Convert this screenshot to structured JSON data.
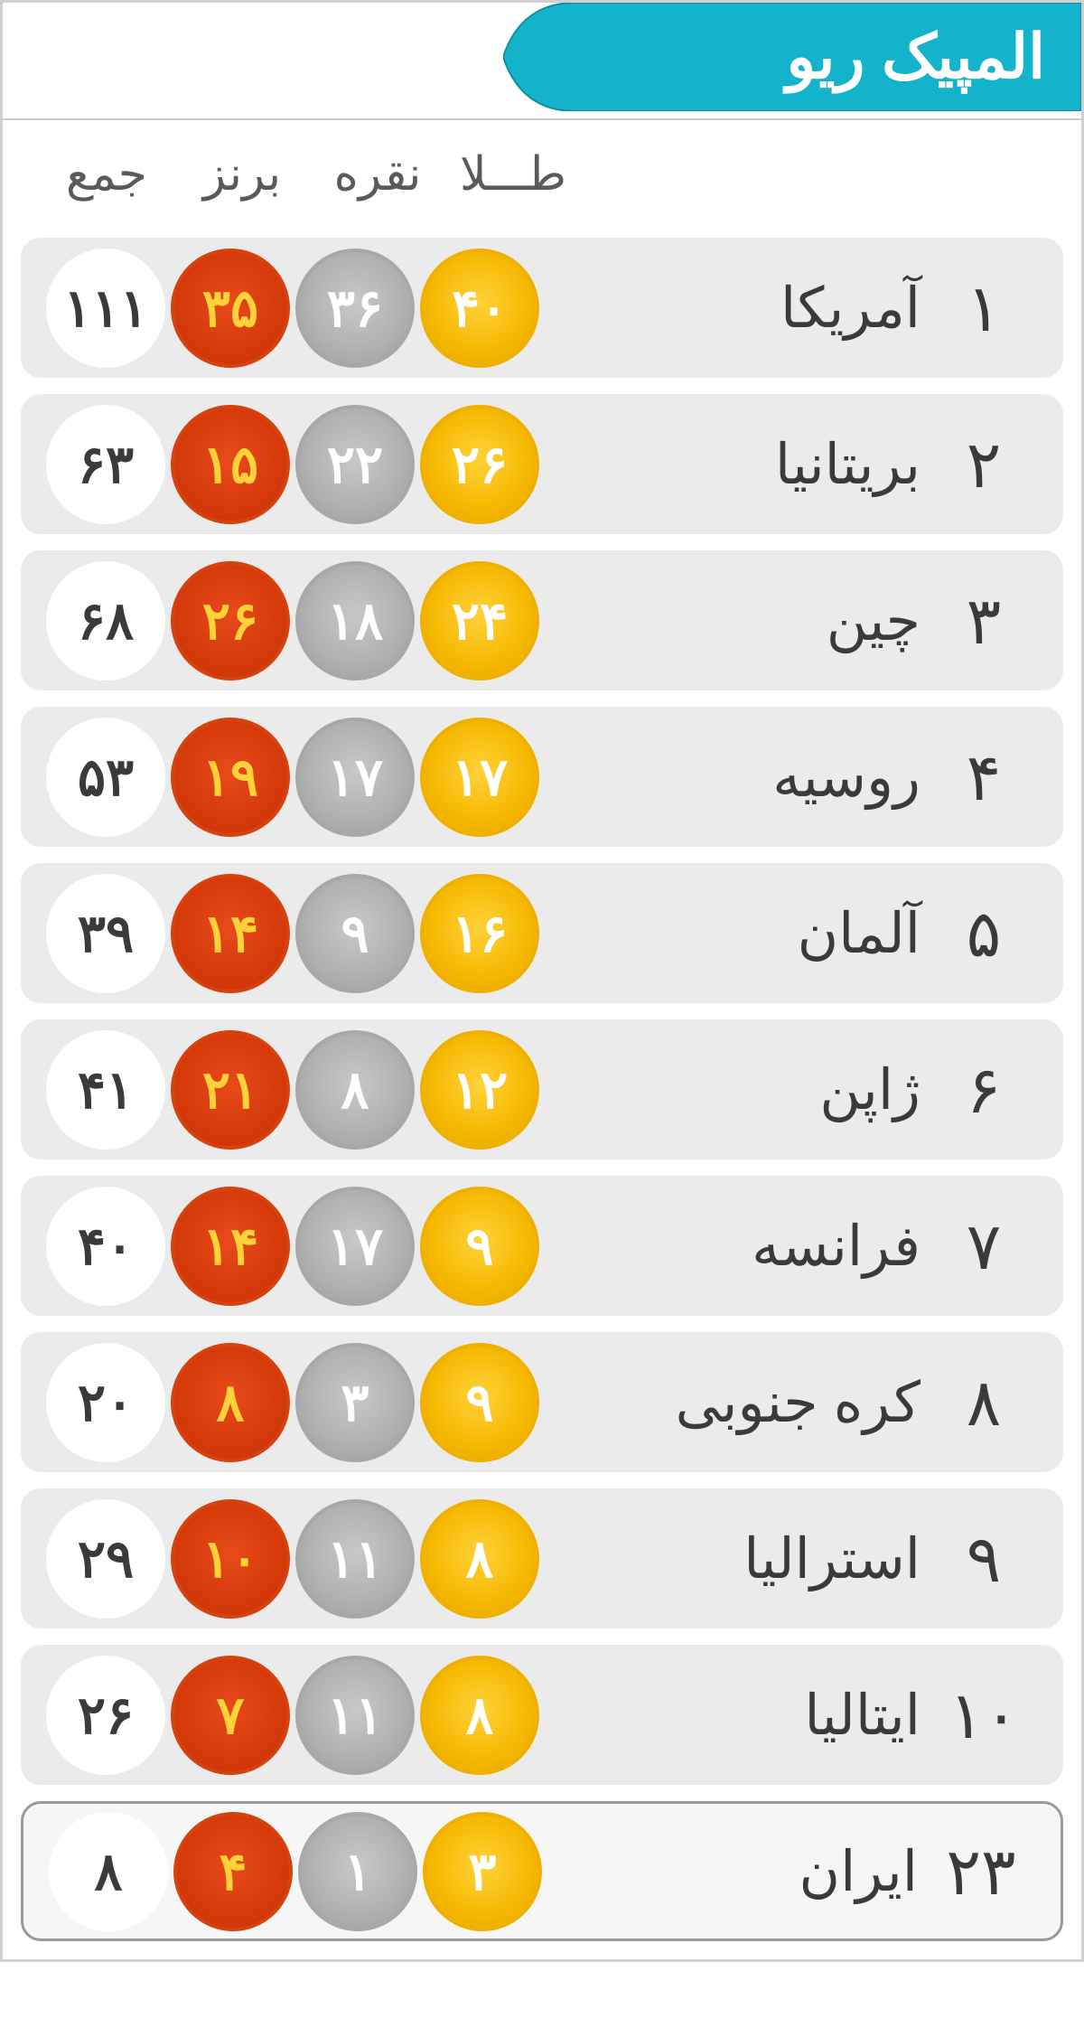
{
  "title": "المپیک ریو",
  "colors": {
    "header_bg": "#14b3cc",
    "header_text": "#ffffff",
    "row_bg": "#ebebeb",
    "row_highlight_bg": "#f6f6f6",
    "row_highlight_border": "#9a9a9a",
    "text": "#3a3a3a",
    "col_header_text": "#5a5a5a",
    "gold": "#f5b800",
    "silver": "#b0b0b0",
    "bronze": "#d63a0a",
    "bronze_text": "#ffd23a",
    "total_bg": "#ffffff"
  },
  "headers": {
    "gold": "طـــلا",
    "silver": "نقره",
    "bronze": "برنز",
    "total": "جمع"
  },
  "rows": [
    {
      "rank": "۱",
      "country": "آمریکا",
      "gold": "۴۰",
      "silver": "۳۶",
      "bronze": "۳۵",
      "total": "۱۱۱",
      "highlight": false
    },
    {
      "rank": "۲",
      "country": "بریتانیا",
      "gold": "۲۶",
      "silver": "۲۲",
      "bronze": "۱۵",
      "total": "۶۳",
      "highlight": false
    },
    {
      "rank": "۳",
      "country": "چین",
      "gold": "۲۴",
      "silver": "۱۸",
      "bronze": "۲۶",
      "total": "۶۸",
      "highlight": false
    },
    {
      "rank": "۴",
      "country": "روسیه",
      "gold": "۱۷",
      "silver": "۱۷",
      "bronze": "۱۹",
      "total": "۵۳",
      "highlight": false
    },
    {
      "rank": "۵",
      "country": "آلمان",
      "gold": "۱۶",
      "silver": "۹",
      "bronze": "۱۴",
      "total": "۳۹",
      "highlight": false
    },
    {
      "rank": "۶",
      "country": "ژاپن",
      "gold": "۱۲",
      "silver": "۸",
      "bronze": "۲۱",
      "total": "۴۱",
      "highlight": false
    },
    {
      "rank": "۷",
      "country": "فرانسه",
      "gold": "۹",
      "silver": "۱۷",
      "bronze": "۱۴",
      "total": "۴۰",
      "highlight": false
    },
    {
      "rank": "۸",
      "country": "کره جنوبی",
      "gold": "۹",
      "silver": "۳",
      "bronze": "۸",
      "total": "۲۰",
      "highlight": false
    },
    {
      "rank": "۹",
      "country": "استرالیا",
      "gold": "۸",
      "silver": "۱۱",
      "bronze": "۱۰",
      "total": "۲۹",
      "highlight": false
    },
    {
      "rank": "۱۰",
      "country": "ایتالیا",
      "gold": "۸",
      "silver": "۱۱",
      "bronze": "۷",
      "total": "۲۶",
      "highlight": false
    },
    {
      "rank": "۲۳",
      "country": "ایران",
      "gold": "۳",
      "silver": "۱",
      "bronze": "۴",
      "total": "۸",
      "highlight": true
    }
  ]
}
